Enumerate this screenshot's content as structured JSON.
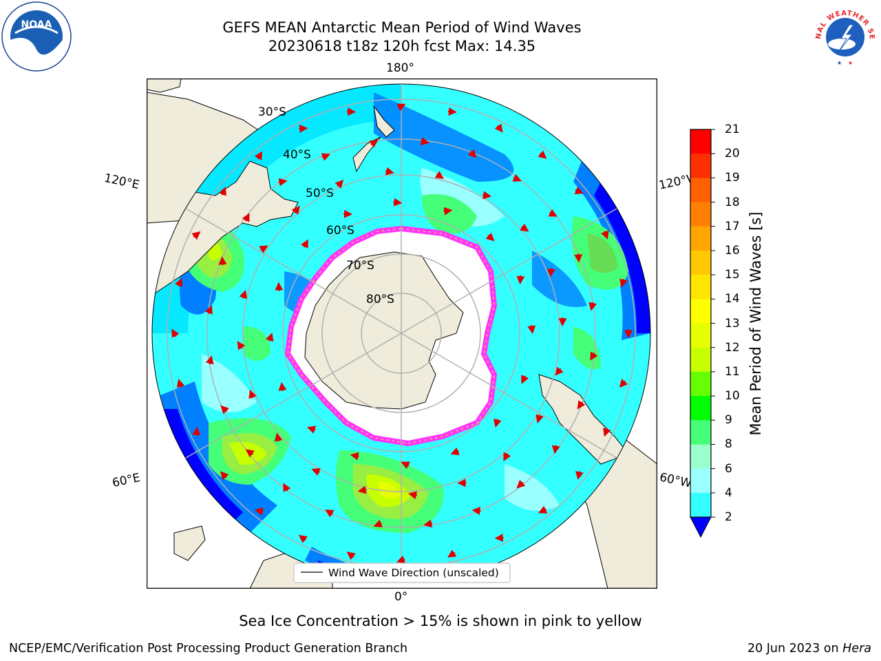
{
  "header": {
    "title_line1": "GEFS MEAN Antarctic Mean Period of Wind Waves",
    "title_line2": "20230618 t18z 120h fcst   Max: 14.35"
  },
  "logos": {
    "left": "NOAA",
    "right": "NATIONAL WEATHER SERVICE"
  },
  "map": {
    "projection": "south-polar-stereographic",
    "lon_labels": {
      "top": "180°",
      "left_upper": "120°E",
      "right_upper": "120°W",
      "left_lower": "60°E",
      "right_lower": "60°W",
      "bottom": "0°"
    },
    "lat_labels": [
      "30°S",
      "40°S",
      "50°S",
      "60°S",
      "70°S",
      "80°S"
    ],
    "legend_label": "Wind Wave Direction (unscaled)",
    "arrow_color": "#e00000",
    "land_color": "#efecdb",
    "ice_edge_colors": [
      "#ff33ff",
      "#ffb050",
      "#ffff66"
    ]
  },
  "colorbar": {
    "label": "Mean Period of Wind Waves [s]",
    "ticks": [
      "21",
      "20",
      "19",
      "18",
      "17",
      "16",
      "15",
      "14",
      "13",
      "12",
      "11",
      "10",
      "9",
      "8",
      "6",
      "4",
      "2"
    ],
    "colors": [
      "#ff0000",
      "#ff3000",
      "#ff6000",
      "#ff8000",
      "#ffa500",
      "#ffc800",
      "#ffe400",
      "#ffff00",
      "#e6ff00",
      "#c8ff00",
      "#66ff00",
      "#00ff00",
      "#44ff77",
      "#99ffcc",
      "#99ffff",
      "#33ffff",
      "#00e5ff",
      "#007fff"
    ],
    "extend_color": "#0000ff"
  },
  "footer": {
    "note": "Sea Ice Concentration > 15% is shown in pink to yellow",
    "credit": "NCEP/EMC/Verification Post Processing Product Generation Branch",
    "date": "20 Jun 2023 on ",
    "machine": "Hera"
  }
}
